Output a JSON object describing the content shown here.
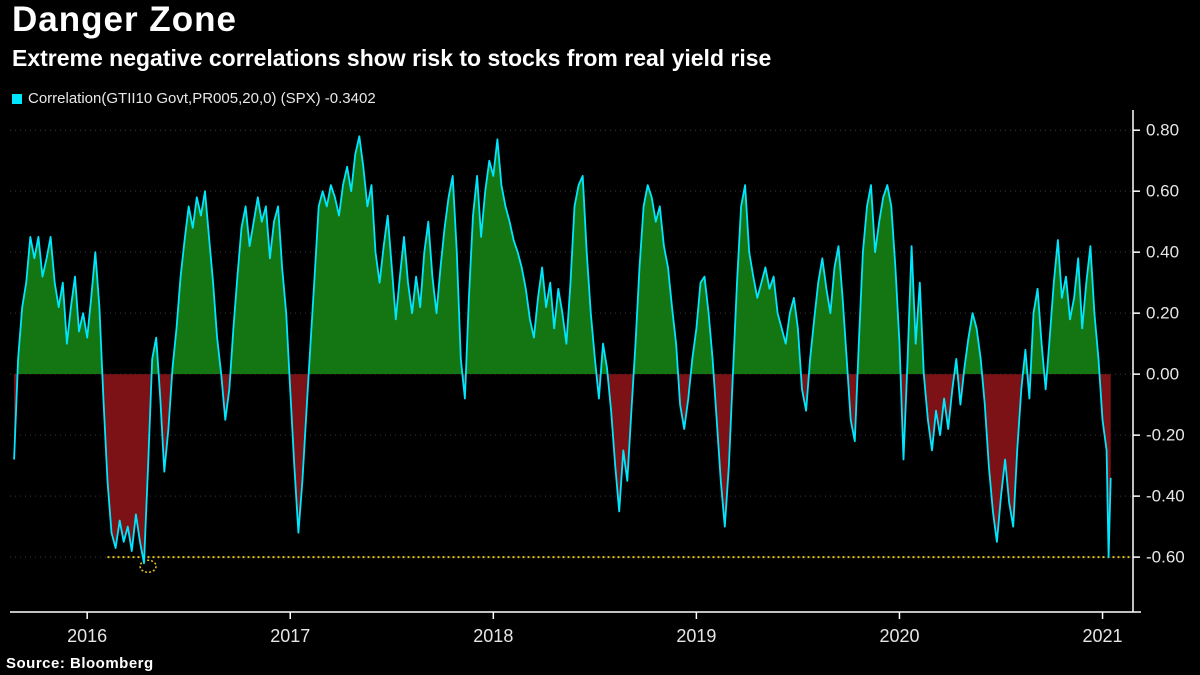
{
  "header": {
    "title": "Danger Zone",
    "subtitle": "Extreme negative correlations show risk to stocks from real yield rise"
  },
  "legend": {
    "label": "Correlation(GTII10 Govt,PR005,20,0)  (SPX) -0.3402",
    "swatch_color": "#00e6ff"
  },
  "footer": {
    "source": "Source: Bloomberg"
  },
  "chart_data": {
    "type": "area",
    "title": "Danger Zone",
    "xlabel": "",
    "ylabel": "",
    "xlim": [
      2015.62,
      2021.15
    ],
    "ylim": [
      -0.78,
      0.84
    ],
    "grid": "horizontal-dotted",
    "legend_position": "top-left",
    "colors": {
      "line": "#00e6ff",
      "positive_fill": "#137613",
      "negative_fill": "#7d1216",
      "grid": "#3a3a3a",
      "axis": "#ffffff",
      "tick_text": "#e6e6e6",
      "threshold": "#e6c619"
    },
    "y_ticks": [
      {
        "label": "0.80",
        "value": 0.8
      },
      {
        "label": "0.60",
        "value": 0.6
      },
      {
        "label": "0.40",
        "value": 0.4
      },
      {
        "label": "0.20",
        "value": 0.2
      },
      {
        "label": "0.00",
        "value": 0.0
      },
      {
        "label": "-0.20",
        "value": -0.2
      },
      {
        "label": "-0.40",
        "value": -0.4
      },
      {
        "label": "-0.60",
        "value": -0.6
      }
    ],
    "x_ticks": [
      {
        "label": "2016",
        "value": 2016
      },
      {
        "label": "2017",
        "value": 2017
      },
      {
        "label": "2018",
        "value": 2018
      },
      {
        "label": "2019",
        "value": 2019
      },
      {
        "label": "2020",
        "value": 2020
      },
      {
        "label": "2021",
        "value": 2021
      }
    ],
    "threshold_line": {
      "value": -0.6,
      "color": "#e6c619",
      "style": "dotted",
      "x_start": 2016.1
    },
    "annotation_circle": {
      "x": 2016.3,
      "y": -0.63
    },
    "series": [
      {
        "name": "Correlation(GTII10 Govt,PR005,20,0) (SPX)",
        "last_value": -0.3402,
        "points": [
          [
            2015.64,
            -0.28
          ],
          [
            2015.66,
            0.05
          ],
          [
            2015.68,
            0.22
          ],
          [
            2015.7,
            0.3
          ],
          [
            2015.72,
            0.45
          ],
          [
            2015.74,
            0.38
          ],
          [
            2015.76,
            0.45
          ],
          [
            2015.78,
            0.32
          ],
          [
            2015.8,
            0.38
          ],
          [
            2015.82,
            0.45
          ],
          [
            2015.84,
            0.3
          ],
          [
            2015.86,
            0.22
          ],
          [
            2015.88,
            0.3
          ],
          [
            2015.9,
            0.1
          ],
          [
            2015.92,
            0.22
          ],
          [
            2015.94,
            0.32
          ],
          [
            2015.96,
            0.14
          ],
          [
            2015.98,
            0.2
          ],
          [
            2016.0,
            0.12
          ],
          [
            2016.02,
            0.25
          ],
          [
            2016.04,
            0.4
          ],
          [
            2016.06,
            0.22
          ],
          [
            2016.08,
            -0.08
          ],
          [
            2016.1,
            -0.35
          ],
          [
            2016.12,
            -0.52
          ],
          [
            2016.14,
            -0.57
          ],
          [
            2016.16,
            -0.48
          ],
          [
            2016.18,
            -0.55
          ],
          [
            2016.2,
            -0.5
          ],
          [
            2016.22,
            -0.58
          ],
          [
            2016.24,
            -0.46
          ],
          [
            2016.26,
            -0.55
          ],
          [
            2016.28,
            -0.62
          ],
          [
            2016.3,
            -0.3
          ],
          [
            2016.32,
            0.05
          ],
          [
            2016.34,
            0.12
          ],
          [
            2016.36,
            -0.08
          ],
          [
            2016.38,
            -0.32
          ],
          [
            2016.4,
            -0.18
          ],
          [
            2016.42,
            0.02
          ],
          [
            2016.44,
            0.15
          ],
          [
            2016.46,
            0.32
          ],
          [
            2016.48,
            0.44
          ],
          [
            2016.5,
            0.55
          ],
          [
            2016.52,
            0.48
          ],
          [
            2016.54,
            0.58
          ],
          [
            2016.56,
            0.52
          ],
          [
            2016.58,
            0.6
          ],
          [
            2016.6,
            0.45
          ],
          [
            2016.62,
            0.3
          ],
          [
            2016.64,
            0.12
          ],
          [
            2016.66,
            0.0
          ],
          [
            2016.68,
            -0.15
          ],
          [
            2016.7,
            -0.05
          ],
          [
            2016.72,
            0.15
          ],
          [
            2016.74,
            0.32
          ],
          [
            2016.76,
            0.48
          ],
          [
            2016.78,
            0.55
          ],
          [
            2016.8,
            0.42
          ],
          [
            2016.82,
            0.5
          ],
          [
            2016.84,
            0.58
          ],
          [
            2016.86,
            0.5
          ],
          [
            2016.88,
            0.55
          ],
          [
            2016.9,
            0.38
          ],
          [
            2016.92,
            0.5
          ],
          [
            2016.94,
            0.55
          ],
          [
            2016.96,
            0.35
          ],
          [
            2016.98,
            0.2
          ],
          [
            2017.0,
            -0.05
          ],
          [
            2017.02,
            -0.3
          ],
          [
            2017.04,
            -0.52
          ],
          [
            2017.06,
            -0.35
          ],
          [
            2017.08,
            -0.12
          ],
          [
            2017.1,
            0.1
          ],
          [
            2017.12,
            0.32
          ],
          [
            2017.14,
            0.55
          ],
          [
            2017.16,
            0.6
          ],
          [
            2017.18,
            0.55
          ],
          [
            2017.2,
            0.62
          ],
          [
            2017.22,
            0.58
          ],
          [
            2017.24,
            0.52
          ],
          [
            2017.26,
            0.62
          ],
          [
            2017.28,
            0.68
          ],
          [
            2017.3,
            0.6
          ],
          [
            2017.32,
            0.72
          ],
          [
            2017.34,
            0.78
          ],
          [
            2017.36,
            0.68
          ],
          [
            2017.38,
            0.55
          ],
          [
            2017.4,
            0.62
          ],
          [
            2017.42,
            0.4
          ],
          [
            2017.44,
            0.3
          ],
          [
            2017.46,
            0.42
          ],
          [
            2017.48,
            0.52
          ],
          [
            2017.5,
            0.35
          ],
          [
            2017.52,
            0.18
          ],
          [
            2017.54,
            0.32
          ],
          [
            2017.56,
            0.45
          ],
          [
            2017.58,
            0.3
          ],
          [
            2017.6,
            0.2
          ],
          [
            2017.62,
            0.32
          ],
          [
            2017.64,
            0.22
          ],
          [
            2017.66,
            0.4
          ],
          [
            2017.68,
            0.5
          ],
          [
            2017.7,
            0.32
          ],
          [
            2017.72,
            0.2
          ],
          [
            2017.74,
            0.35
          ],
          [
            2017.76,
            0.48
          ],
          [
            2017.78,
            0.58
          ],
          [
            2017.8,
            0.65
          ],
          [
            2017.82,
            0.4
          ],
          [
            2017.84,
            0.05
          ],
          [
            2017.86,
            -0.08
          ],
          [
            2017.88,
            0.25
          ],
          [
            2017.9,
            0.52
          ],
          [
            2017.92,
            0.65
          ],
          [
            2017.94,
            0.45
          ],
          [
            2017.96,
            0.6
          ],
          [
            2017.98,
            0.7
          ],
          [
            2018.0,
            0.65
          ],
          [
            2018.02,
            0.77
          ],
          [
            2018.04,
            0.62
          ],
          [
            2018.06,
            0.55
          ],
          [
            2018.08,
            0.5
          ],
          [
            2018.1,
            0.44
          ],
          [
            2018.12,
            0.4
          ],
          [
            2018.14,
            0.35
          ],
          [
            2018.16,
            0.28
          ],
          [
            2018.18,
            0.18
          ],
          [
            2018.2,
            0.12
          ],
          [
            2018.22,
            0.25
          ],
          [
            2018.24,
            0.35
          ],
          [
            2018.26,
            0.22
          ],
          [
            2018.28,
            0.3
          ],
          [
            2018.3,
            0.15
          ],
          [
            2018.32,
            0.28
          ],
          [
            2018.34,
            0.2
          ],
          [
            2018.36,
            0.1
          ],
          [
            2018.38,
            0.3
          ],
          [
            2018.4,
            0.55
          ],
          [
            2018.42,
            0.62
          ],
          [
            2018.44,
            0.65
          ],
          [
            2018.46,
            0.4
          ],
          [
            2018.48,
            0.2
          ],
          [
            2018.5,
            0.05
          ],
          [
            2018.52,
            -0.08
          ],
          [
            2018.54,
            0.1
          ],
          [
            2018.56,
            0.02
          ],
          [
            2018.58,
            -0.12
          ],
          [
            2018.6,
            -0.3
          ],
          [
            2018.62,
            -0.45
          ],
          [
            2018.64,
            -0.25
          ],
          [
            2018.66,
            -0.35
          ],
          [
            2018.68,
            -0.12
          ],
          [
            2018.7,
            0.1
          ],
          [
            2018.72,
            0.35
          ],
          [
            2018.74,
            0.55
          ],
          [
            2018.76,
            0.62
          ],
          [
            2018.78,
            0.58
          ],
          [
            2018.8,
            0.5
          ],
          [
            2018.82,
            0.55
          ],
          [
            2018.84,
            0.42
          ],
          [
            2018.86,
            0.35
          ],
          [
            2018.88,
            0.22
          ],
          [
            2018.9,
            0.1
          ],
          [
            2018.92,
            -0.1
          ],
          [
            2018.94,
            -0.18
          ],
          [
            2018.96,
            -0.08
          ],
          [
            2018.98,
            0.05
          ],
          [
            2019.0,
            0.15
          ],
          [
            2019.02,
            0.3
          ],
          [
            2019.04,
            0.32
          ],
          [
            2019.06,
            0.2
          ],
          [
            2019.08,
            0.05
          ],
          [
            2019.1,
            -0.15
          ],
          [
            2019.12,
            -0.35
          ],
          [
            2019.14,
            -0.5
          ],
          [
            2019.16,
            -0.3
          ],
          [
            2019.18,
            0.0
          ],
          [
            2019.2,
            0.3
          ],
          [
            2019.22,
            0.55
          ],
          [
            2019.24,
            0.62
          ],
          [
            2019.26,
            0.4
          ],
          [
            2019.28,
            0.32
          ],
          [
            2019.3,
            0.25
          ],
          [
            2019.32,
            0.3
          ],
          [
            2019.34,
            0.35
          ],
          [
            2019.36,
            0.28
          ],
          [
            2019.38,
            0.32
          ],
          [
            2019.4,
            0.2
          ],
          [
            2019.42,
            0.15
          ],
          [
            2019.44,
            0.1
          ],
          [
            2019.46,
            0.2
          ],
          [
            2019.48,
            0.25
          ],
          [
            2019.5,
            0.15
          ],
          [
            2019.52,
            -0.05
          ],
          [
            2019.54,
            -0.12
          ],
          [
            2019.56,
            0.05
          ],
          [
            2019.58,
            0.18
          ],
          [
            2019.6,
            0.3
          ],
          [
            2019.62,
            0.38
          ],
          [
            2019.64,
            0.28
          ],
          [
            2019.66,
            0.2
          ],
          [
            2019.68,
            0.35
          ],
          [
            2019.7,
            0.42
          ],
          [
            2019.72,
            0.25
          ],
          [
            2019.74,
            0.05
          ],
          [
            2019.76,
            -0.15
          ],
          [
            2019.78,
            -0.22
          ],
          [
            2019.8,
            0.1
          ],
          [
            2019.82,
            0.4
          ],
          [
            2019.84,
            0.55
          ],
          [
            2019.86,
            0.62
          ],
          [
            2019.88,
            0.4
          ],
          [
            2019.9,
            0.5
          ],
          [
            2019.92,
            0.58
          ],
          [
            2019.94,
            0.62
          ],
          [
            2019.96,
            0.55
          ],
          [
            2019.98,
            0.35
          ],
          [
            2020.0,
            0.1
          ],
          [
            2020.02,
            -0.28
          ],
          [
            2020.04,
            0.05
          ],
          [
            2020.06,
            0.42
          ],
          [
            2020.08,
            0.1
          ],
          [
            2020.1,
            0.3
          ],
          [
            2020.12,
            0.0
          ],
          [
            2020.14,
            -0.15
          ],
          [
            2020.16,
            -0.25
          ],
          [
            2020.18,
            -0.12
          ],
          [
            2020.2,
            -0.2
          ],
          [
            2020.22,
            -0.08
          ],
          [
            2020.24,
            -0.18
          ],
          [
            2020.26,
            -0.05
          ],
          [
            2020.28,
            0.05
          ],
          [
            2020.3,
            -0.1
          ],
          [
            2020.32,
            0.02
          ],
          [
            2020.34,
            0.12
          ],
          [
            2020.36,
            0.2
          ],
          [
            2020.38,
            0.15
          ],
          [
            2020.4,
            0.05
          ],
          [
            2020.42,
            -0.1
          ],
          [
            2020.44,
            -0.3
          ],
          [
            2020.46,
            -0.45
          ],
          [
            2020.48,
            -0.55
          ],
          [
            2020.5,
            -0.4
          ],
          [
            2020.52,
            -0.28
          ],
          [
            2020.54,
            -0.42
          ],
          [
            2020.56,
            -0.5
          ],
          [
            2020.58,
            -0.25
          ],
          [
            2020.6,
            -0.05
          ],
          [
            2020.62,
            0.08
          ],
          [
            2020.64,
            -0.08
          ],
          [
            2020.66,
            0.2
          ],
          [
            2020.68,
            0.28
          ],
          [
            2020.7,
            0.1
          ],
          [
            2020.72,
            -0.05
          ],
          [
            2020.74,
            0.12
          ],
          [
            2020.76,
            0.3
          ],
          [
            2020.78,
            0.44
          ],
          [
            2020.8,
            0.25
          ],
          [
            2020.82,
            0.32
          ],
          [
            2020.84,
            0.18
          ],
          [
            2020.86,
            0.25
          ],
          [
            2020.88,
            0.38
          ],
          [
            2020.9,
            0.15
          ],
          [
            2020.92,
            0.3
          ],
          [
            2020.94,
            0.42
          ],
          [
            2020.96,
            0.2
          ],
          [
            2020.98,
            0.05
          ],
          [
            2021.0,
            -0.15
          ],
          [
            2021.02,
            -0.25
          ],
          [
            2021.03,
            -0.6
          ],
          [
            2021.04,
            -0.34
          ]
        ]
      }
    ]
  }
}
